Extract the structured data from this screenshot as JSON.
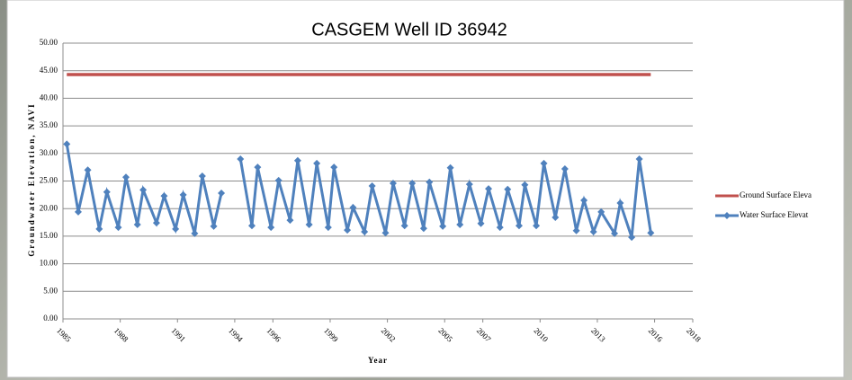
{
  "chart_data": {
    "type": "line",
    "title": "CASGEM Well ID 36942",
    "x_label": "Year",
    "y_label": "Groundwater Elevation, NAVI",
    "xlim": [
      1985,
      2018
    ],
    "ylim": [
      0,
      50
    ],
    "xticks": [
      1985,
      1988,
      1991,
      1994,
      1996,
      1999,
      2002,
      2005,
      2007,
      2010,
      2013,
      2016,
      2018
    ],
    "yticks": [
      {
        "value": 0,
        "label": "0.00"
      },
      {
        "value": 5,
        "label": "5.00"
      },
      {
        "value": 10,
        "label": "10.00"
      },
      {
        "value": 15,
        "label": "15.00"
      },
      {
        "value": 20,
        "label": "20.00"
      },
      {
        "value": 25,
        "label": "25.00"
      },
      {
        "value": 30,
        "label": "30.00"
      },
      {
        "value": 35,
        "label": "35.00"
      },
      {
        "value": 40,
        "label": "40.00"
      },
      {
        "value": 45,
        "label": "45.00"
      },
      {
        "value": 50,
        "label": "50.00"
      }
    ],
    "grid": true,
    "legend": "right",
    "series": [
      {
        "name": "Ground Surface Eleva",
        "color": "#c0504d",
        "marker": false,
        "x": [
          1985.2,
          2015.8
        ],
        "values": [
          44.3,
          44.3
        ]
      },
      {
        "name": "Water Surface Elevat",
        "color": "#4f81bd",
        "marker": true,
        "x": [
          1985.2,
          1985.8,
          1986.3,
          1986.9,
          1987.3,
          1987.9,
          1988.3,
          1988.9,
          1989.2,
          1989.9,
          1990.3,
          1990.9,
          1991.3,
          1991.9,
          1992.3,
          1992.9,
          1993.3,
          null,
          1994.3,
          1994.9,
          1995.2,
          1995.9,
          1996.3,
          1996.9,
          1997.3,
          1997.9,
          1998.3,
          1998.9,
          1999.2,
          1999.9,
          2000.2,
          2000.8,
          2001.2,
          2001.9,
          2002.3,
          2002.9,
          2003.3,
          2003.9,
          2004.2,
          2004.9,
          2005.3,
          2005.8,
          2006.3,
          2006.9,
          2007.3,
          2007.9,
          2008.3,
          2008.9,
          2009.2,
          2009.8,
          2010.2,
          2010.8,
          2011.3,
          2011.9,
          2012.3,
          2012.8,
          2013.2,
          2013.9,
          2014.2,
          2014.8,
          2015.2,
          2015.8
        ],
        "values": [
          31.7,
          19.4,
          27.0,
          16.3,
          23.0,
          16.6,
          25.7,
          17.1,
          23.4,
          17.4,
          22.3,
          16.3,
          22.5,
          15.5,
          25.9,
          16.8,
          22.8,
          null,
          29.0,
          16.9,
          27.5,
          16.6,
          25.1,
          17.9,
          28.7,
          17.1,
          28.2,
          16.6,
          27.5,
          16.1,
          20.2,
          15.8,
          24.1,
          15.6,
          24.6,
          16.9,
          24.6,
          16.4,
          24.8,
          16.8,
          27.4,
          17.1,
          24.4,
          17.3,
          23.6,
          16.6,
          23.5,
          16.9,
          24.3,
          16.9,
          28.2,
          18.4,
          27.2,
          16.0,
          21.5,
          15.8,
          19.4,
          15.5,
          21.0,
          14.8,
          29.0,
          15.6
        ]
      }
    ]
  }
}
